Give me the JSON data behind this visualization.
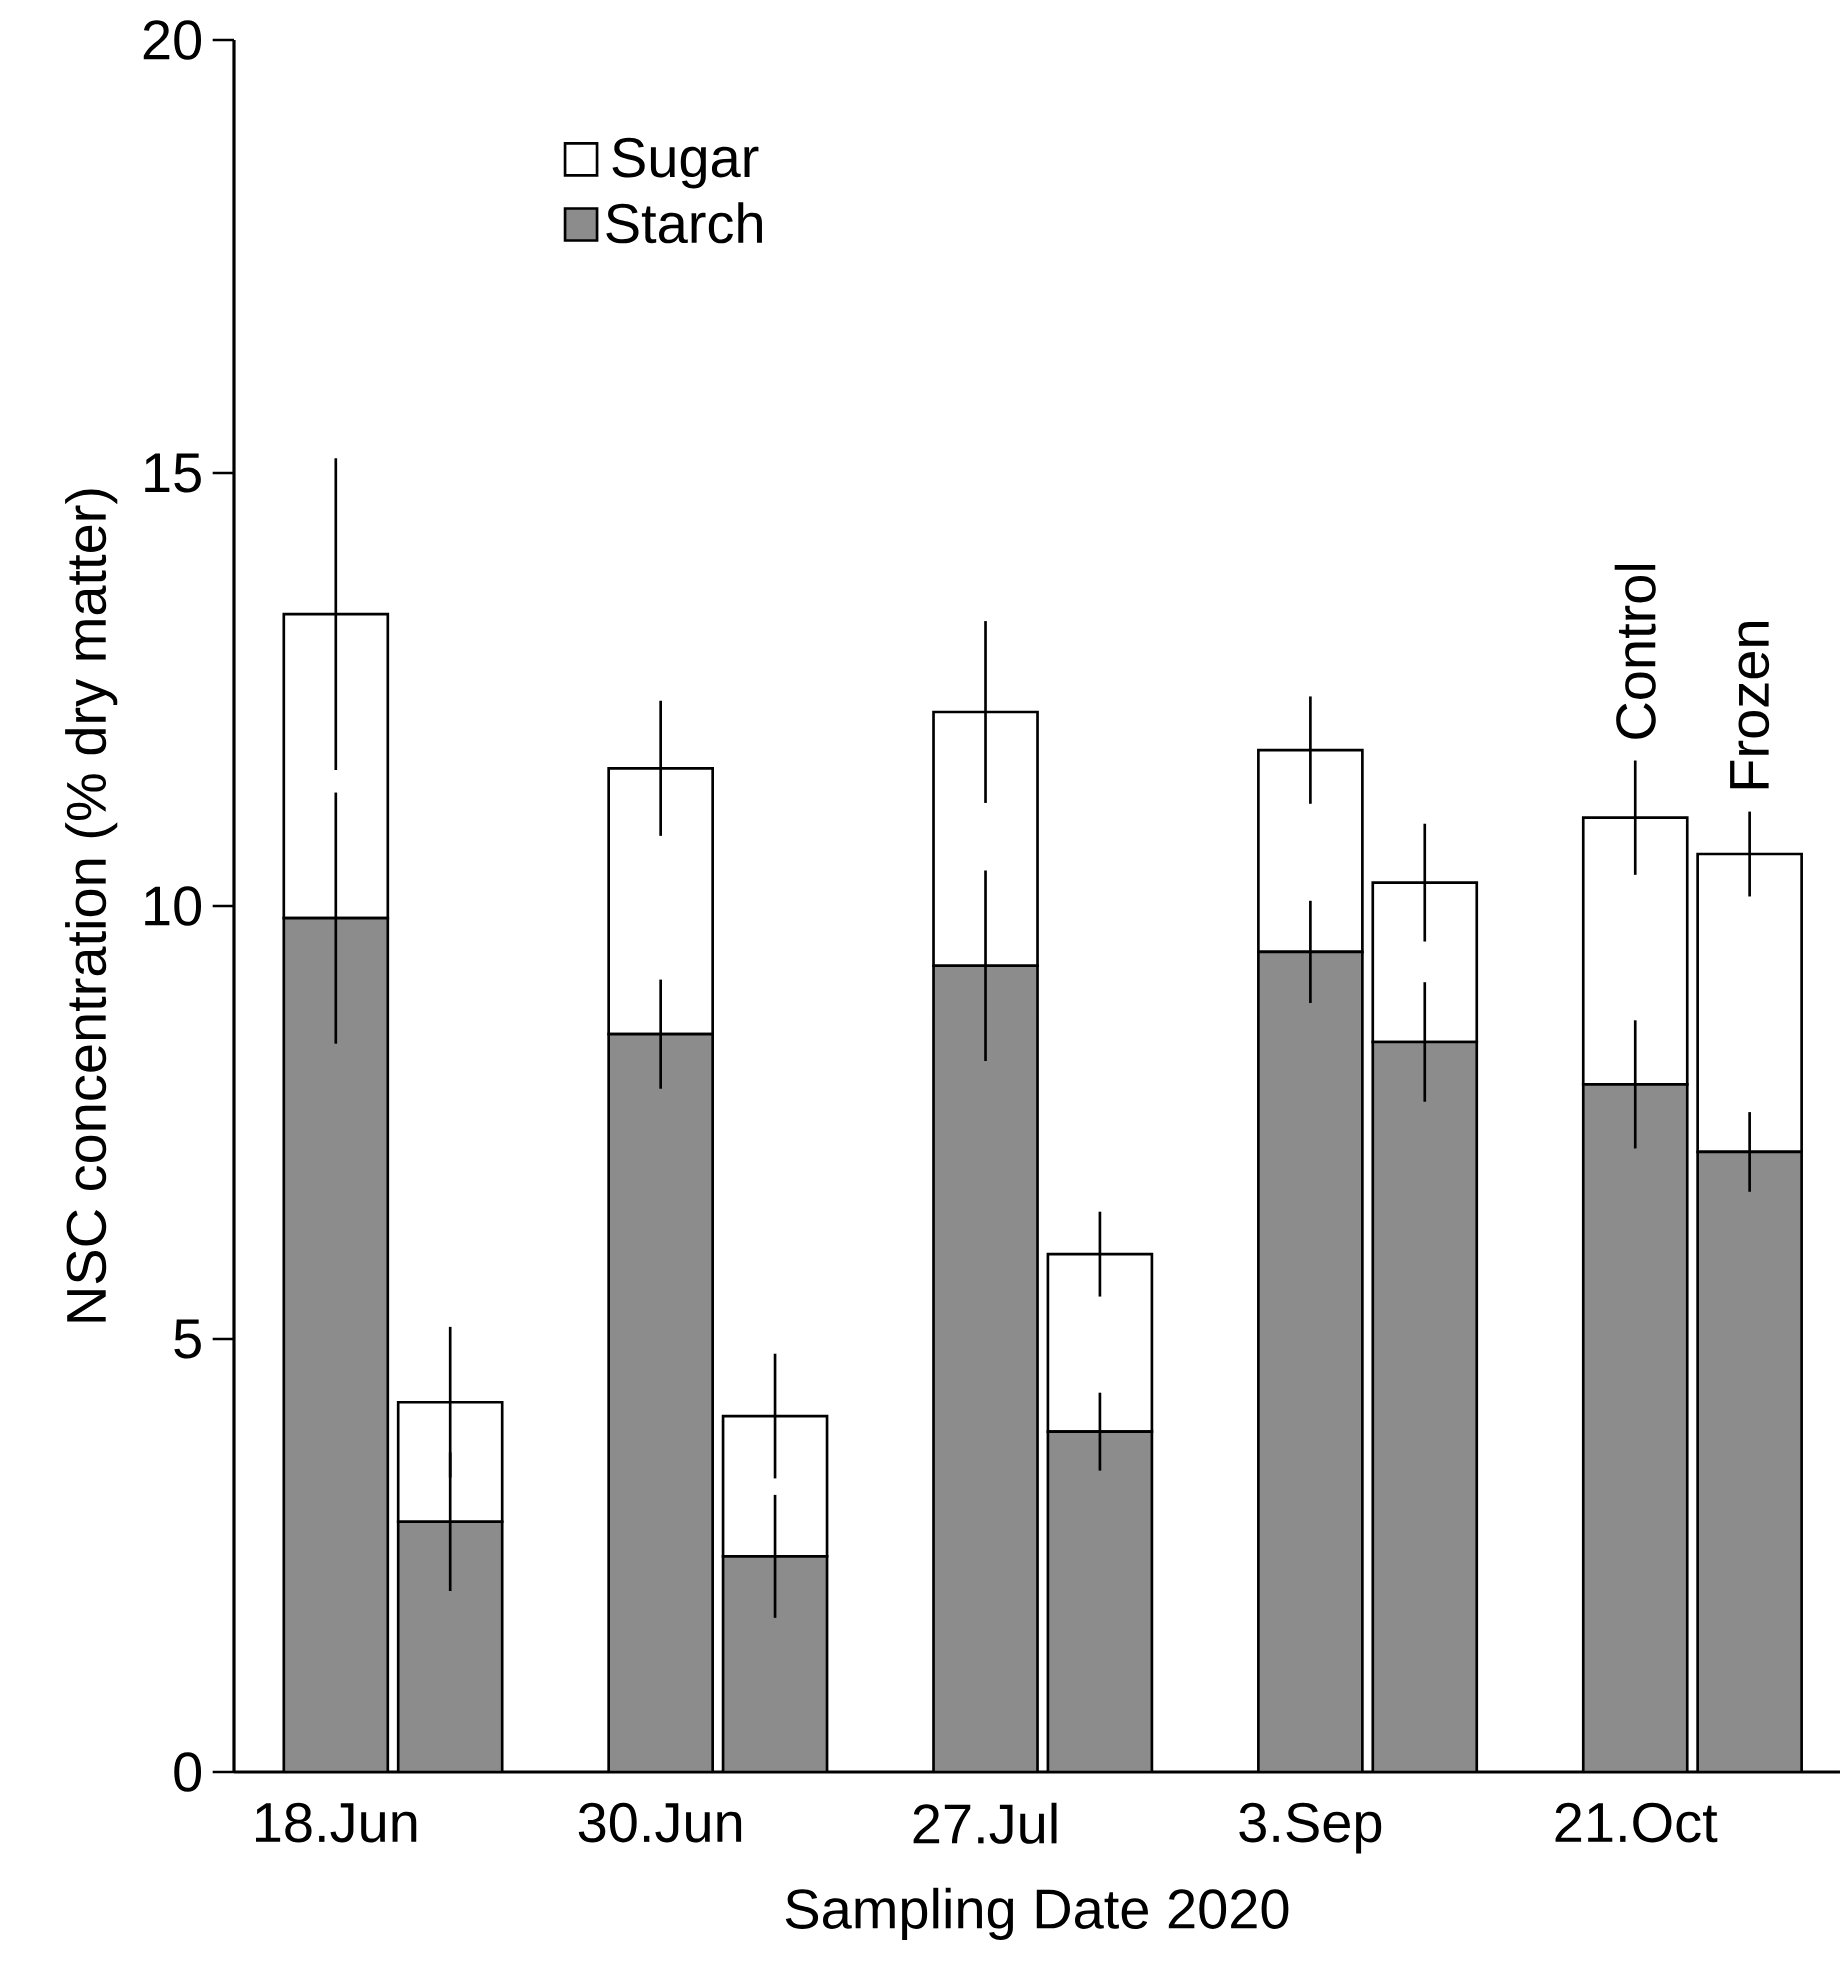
{
  "chart_data": {
    "type": "bar",
    "stacked": true,
    "xlabel": "Sampling Date 2020",
    "ylabel": "NSC concentration (% dry matter)",
    "categories": [
      "18.Jun",
      null,
      "30.Jun",
      null,
      "27.Jul",
      null,
      "3.Sep",
      null,
      "21.Oct",
      null
    ],
    "series": [
      {
        "name": "Starch",
        "color": "#8c8c8c",
        "values": [
          9.86,
          2.89,
          8.52,
          2.49,
          9.31,
          3.93,
          9.47,
          8.43,
          7.94,
          7.16
        ],
        "errors": [
          1.45,
          0.8,
          0.63,
          0.71,
          1.1,
          0.45,
          0.59,
          0.69,
          0.74,
          0.46
        ]
      },
      {
        "name": "Sugar",
        "color": "#ffffff",
        "values": [
          3.51,
          1.38,
          3.07,
          1.62,
          2.93,
          2.05,
          2.33,
          1.84,
          3.08,
          3.44
        ],
        "errors": [
          1.8,
          0.87,
          0.78,
          0.72,
          1.05,
          0.49,
          0.62,
          0.68,
          0.66,
          0.49
        ]
      }
    ],
    "ylim": [
      0,
      20
    ],
    "yticks": [
      0,
      5,
      10,
      15,
      20
    ],
    "legend": "top left",
    "marker": "square",
    "annotations": [
      "Control",
      "Frozen"
    ]
  }
}
